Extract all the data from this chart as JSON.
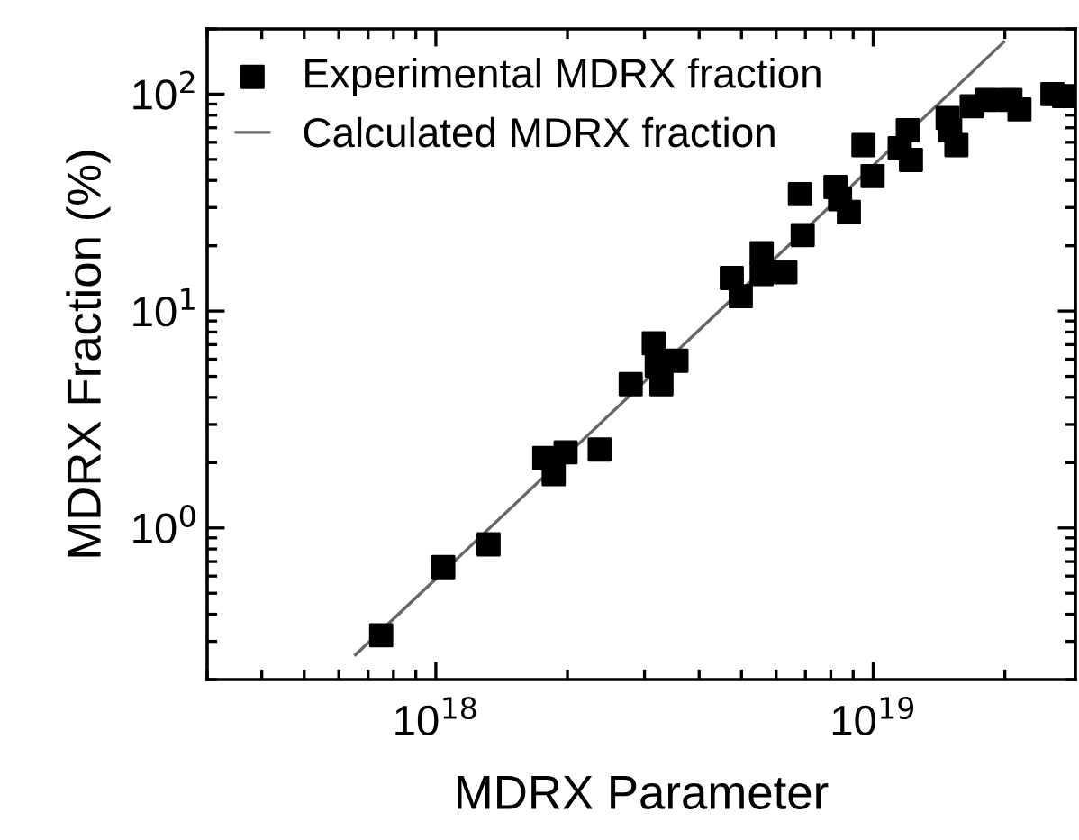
{
  "chart_data": {
    "type": "scatter",
    "xlabel": "MDRX Parameter",
    "ylabel": "MDRX Fraction (%)",
    "log": "xy",
    "grid": false,
    "legend": "top left",
    "xlim": [
      3e+17,
      2.9e+19
    ],
    "ylim": [
      0.2,
      200
    ],
    "xticks": [
      {
        "value": 1e+18,
        "label": "10$^{18}$"
      },
      {
        "value": 1e+19,
        "label": "10$^{19}$"
      }
    ],
    "yticks": [
      {
        "value": 1,
        "label": "10$^{0}$"
      },
      {
        "value": 10,
        "label": "10$^{1}$"
      },
      {
        "value": 100,
        "label": "10$^{2}$"
      }
    ],
    "series": [
      {
        "name": "Experimental MDRX fraction",
        "marker": "square",
        "color": "#000000",
        "x": [
          7.5e+17,
          1.04e+18,
          1.32e+18,
          1.77e+18,
          1.86e+18,
          1.98e+18,
          2.37e+18,
          2.79e+18,
          3.15e+18,
          3.2e+18,
          3.28e+18,
          3.55e+18,
          4.75e+18,
          4.98e+18,
          5.56e+18,
          5.56e+18,
          6.3e+18,
          6.9e+18,
          6.8e+18,
          8.2e+18,
          8.4e+18,
          8.8e+18,
          9.5e+18,
          9.97e+18,
          1.2e+19,
          1.15e+19,
          1.22e+19,
          1.48e+19,
          1.5e+19,
          1.55e+19,
          1.68e+19,
          1.82e+19,
          2.06e+19,
          2.16e+19,
          2.57e+19,
          2.73e+19
        ],
        "values": [
          0.32,
          0.66,
          0.84,
          2.1,
          1.77,
          2.23,
          2.3,
          4.6,
          7.1,
          5.6,
          4.6,
          5.9,
          14.2,
          11.7,
          18.5,
          14.8,
          15.1,
          22.4,
          34.6,
          37.3,
          32.8,
          28.6,
          58.2,
          41.9,
          68.2,
          56.4,
          49.7,
          77.6,
          68.2,
          58.2,
          88,
          94,
          94,
          85,
          100,
          98
        ]
      },
      {
        "name": "Calculated MDRX fraction",
        "type": "line",
        "marker": "none",
        "line_style": "solid",
        "color": "#666666",
        "x": [
          6.55e+17,
          1.99e+19
        ],
        "values": [
          0.26,
          174
        ]
      }
    ]
  }
}
